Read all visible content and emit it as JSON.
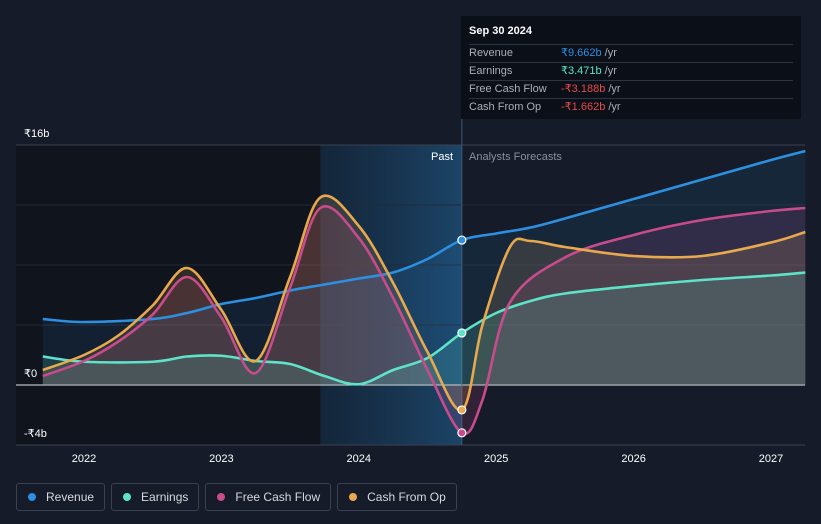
{
  "chart_data": {
    "type": "area",
    "ylim": [
      -4,
      16
    ],
    "xlim": [
      2021.5,
      2027.25
    ],
    "y_ticks": [
      {
        "value": 16,
        "label": "₹16b"
      },
      {
        "value": 0,
        "label": "₹0"
      },
      {
        "value": -4,
        "label": "-₹4b"
      }
    ],
    "x_ticks": [
      {
        "value": 2022,
        "label": "2022"
      },
      {
        "value": 2023,
        "label": "2023"
      },
      {
        "value": 2024,
        "label": "2024"
      },
      {
        "value": 2025,
        "label": "2025"
      },
      {
        "value": 2026,
        "label": "2026"
      },
      {
        "value": 2027,
        "label": "2027"
      }
    ],
    "divider_x": 2024.75,
    "highlight_start_x": 2023.72,
    "past_label": "Past",
    "forecast_label": "Analysts Forecasts",
    "series": [
      {
        "name": "Revenue",
        "color": "#2d8fe0",
        "points": [
          [
            2021.7,
            4.4
          ],
          [
            2022.0,
            4.2
          ],
          [
            2022.5,
            4.4
          ],
          [
            2022.75,
            4.8
          ],
          [
            2023.0,
            5.4
          ],
          [
            2023.25,
            5.8
          ],
          [
            2023.5,
            6.3
          ],
          [
            2023.75,
            6.7
          ],
          [
            2024.0,
            7.1
          ],
          [
            2024.25,
            7.5
          ],
          [
            2024.5,
            8.4
          ],
          [
            2024.75,
            9.662
          ],
          [
            2025.0,
            10.1
          ],
          [
            2025.25,
            10.5
          ],
          [
            2025.5,
            11.1
          ],
          [
            2026.0,
            12.4
          ],
          [
            2026.5,
            13.7
          ],
          [
            2027.0,
            15.0
          ],
          [
            2027.25,
            15.6
          ]
        ]
      },
      {
        "name": "Earnings",
        "color": "#5ee3c8",
        "points": [
          [
            2021.7,
            1.9
          ],
          [
            2022.0,
            1.55
          ],
          [
            2022.5,
            1.55
          ],
          [
            2022.75,
            1.9
          ],
          [
            2023.0,
            1.95
          ],
          [
            2023.25,
            1.6
          ],
          [
            2023.5,
            1.4
          ],
          [
            2023.75,
            0.6
          ],
          [
            2024.0,
            0.05
          ],
          [
            2024.25,
            1.0
          ],
          [
            2024.5,
            1.8
          ],
          [
            2024.75,
            3.471
          ],
          [
            2025.0,
            4.8
          ],
          [
            2025.25,
            5.6
          ],
          [
            2025.5,
            6.1
          ],
          [
            2026.0,
            6.6
          ],
          [
            2026.5,
            7.0
          ],
          [
            2027.0,
            7.3
          ],
          [
            2027.25,
            7.5
          ]
        ]
      },
      {
        "name": "Free Cash Flow",
        "color": "#c84b8c",
        "points": [
          [
            2021.7,
            0.6
          ],
          [
            2022.0,
            1.6
          ],
          [
            2022.25,
            2.9
          ],
          [
            2022.5,
            4.7
          ],
          [
            2022.75,
            7.2
          ],
          [
            2023.0,
            4.5
          ],
          [
            2023.25,
            0.8
          ],
          [
            2023.5,
            6.5
          ],
          [
            2023.72,
            11.8
          ],
          [
            2024.0,
            9.8
          ],
          [
            2024.25,
            5.8
          ],
          [
            2024.5,
            1.0
          ],
          [
            2024.75,
            -3.188
          ],
          [
            2024.9,
            -1.0
          ],
          [
            2025.1,
            5.5
          ],
          [
            2025.5,
            8.5
          ],
          [
            2026.0,
            10.0
          ],
          [
            2026.5,
            11.0
          ],
          [
            2027.0,
            11.6
          ],
          [
            2027.25,
            11.8
          ]
        ]
      },
      {
        "name": "Cash From Op",
        "color": "#e8a94e",
        "points": [
          [
            2021.7,
            1.0
          ],
          [
            2022.0,
            2.0
          ],
          [
            2022.25,
            3.3
          ],
          [
            2022.5,
            5.3
          ],
          [
            2022.75,
            7.8
          ],
          [
            2023.0,
            5.0
          ],
          [
            2023.25,
            1.6
          ],
          [
            2023.5,
            7.2
          ],
          [
            2023.72,
            12.5
          ],
          [
            2024.0,
            10.6
          ],
          [
            2024.25,
            6.8
          ],
          [
            2024.5,
            2.2
          ],
          [
            2024.75,
            -1.662
          ],
          [
            2024.9,
            4.0
          ],
          [
            2025.1,
            9.2
          ],
          [
            2025.25,
            9.6
          ],
          [
            2025.5,
            9.2
          ],
          [
            2026.0,
            8.6
          ],
          [
            2026.5,
            8.6
          ],
          [
            2027.0,
            9.5
          ],
          [
            2027.25,
            10.2
          ]
        ]
      }
    ]
  },
  "tooltip": {
    "date": "Sep 30 2024",
    "rows": [
      {
        "label": "Revenue",
        "value": "₹9.662b",
        "unit": "/yr",
        "color": "#2d8fe0"
      },
      {
        "label": "Earnings",
        "value": "₹3.471b",
        "unit": "/yr",
        "color": "#5ee3c8"
      },
      {
        "label": "Free Cash Flow",
        "value": "-₹3.188b",
        "unit": "/yr",
        "color": "#e84a4a"
      },
      {
        "label": "Cash From Op",
        "value": "-₹1.662b",
        "unit": "/yr",
        "color": "#e84a4a"
      }
    ]
  },
  "legend": [
    {
      "label": "Revenue",
      "color": "#2d8fe0"
    },
    {
      "label": "Earnings",
      "color": "#5ee3c8"
    },
    {
      "label": "Free Cash Flow",
      "color": "#c84b8c"
    },
    {
      "label": "Cash From Op",
      "color": "#e8a94e"
    }
  ]
}
